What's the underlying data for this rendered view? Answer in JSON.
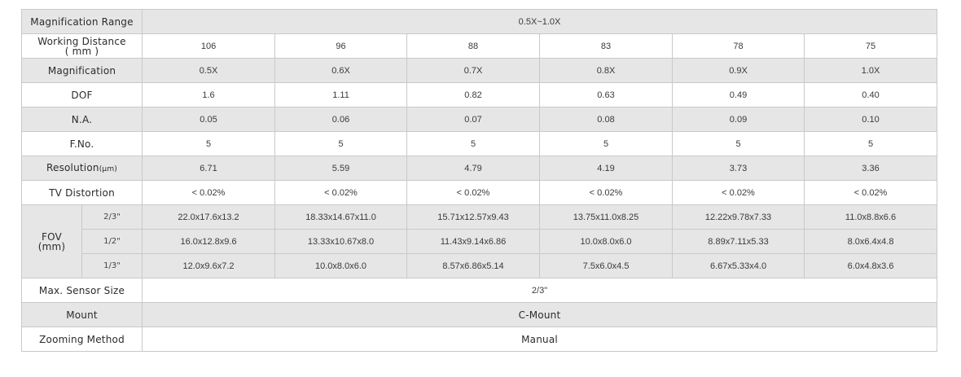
{
  "rows": {
    "mag_range": {
      "label": "Magnification Range",
      "value": "0.5X~1.0X"
    },
    "working_distance": {
      "label1": "Working Distance",
      "label2": "( mm )",
      "values": [
        "106",
        "96",
        "88",
        "83",
        "78",
        "75"
      ]
    },
    "magnification": {
      "label": "Magnification",
      "values": [
        "0.5X",
        "0.6X",
        "0.7X",
        "0.8X",
        "0.9X",
        "1.0X"
      ]
    },
    "dof": {
      "label": "DOF",
      "values": [
        "1.6",
        "1.11",
        "0.82",
        "0.63",
        "0.49",
        "0.40"
      ]
    },
    "na": {
      "label": "N.A.",
      "values": [
        "0.05",
        "0.06",
        "0.07",
        "0.08",
        "0.09",
        "0.10"
      ]
    },
    "fno": {
      "label": "F.No.",
      "values": [
        "5",
        "5",
        "5",
        "5",
        "5",
        "5"
      ]
    },
    "resolution": {
      "label": "Resolution",
      "unit": "(μm)",
      "values": [
        "6.71",
        "5.59",
        "4.79",
        "4.19",
        "3.73",
        "3.36"
      ]
    },
    "tv_distortion": {
      "label": "TV Distortion",
      "values": [
        "< 0.02%",
        "< 0.02%",
        "< 0.02%",
        "< 0.02%",
        "< 0.02%",
        "< 0.02%"
      ]
    },
    "fov": {
      "label1": "FOV",
      "label2": "(mm)",
      "sub_rows": [
        {
          "sensor": "2/3\"",
          "values": [
            "22.0x17.6x13.2",
            "18.33x14.67x11.0",
            "15.71x12.57x9.43",
            "13.75x11.0x8.25",
            "12.22x9.78x7.33",
            "11.0x8.8x6.6"
          ]
        },
        {
          "sensor": "1/2\"",
          "values": [
            "16.0x12.8x9.6",
            "13.33x10.67x8.0",
            "11.43x9.14x6.86",
            "10.0x8.0x6.0",
            "8.89x7.11x5.33",
            "8.0x6.4x4.8"
          ]
        },
        {
          "sensor": "1/3\"",
          "values": [
            "12.0x9.6x7.2",
            "10.0x8.0x6.0",
            "8.57x6.86x5.14",
            "7.5x6.0x4.5",
            "6.67x5.33x4.0",
            "6.0x4.8x3.6"
          ]
        }
      ]
    },
    "max_sensor": {
      "label": "Max. Sensor Size",
      "value": "2/3\""
    },
    "mount": {
      "label": "Mount",
      "value": "C-Mount"
    },
    "zooming": {
      "label": "Zooming Method",
      "value": "Manual"
    }
  }
}
